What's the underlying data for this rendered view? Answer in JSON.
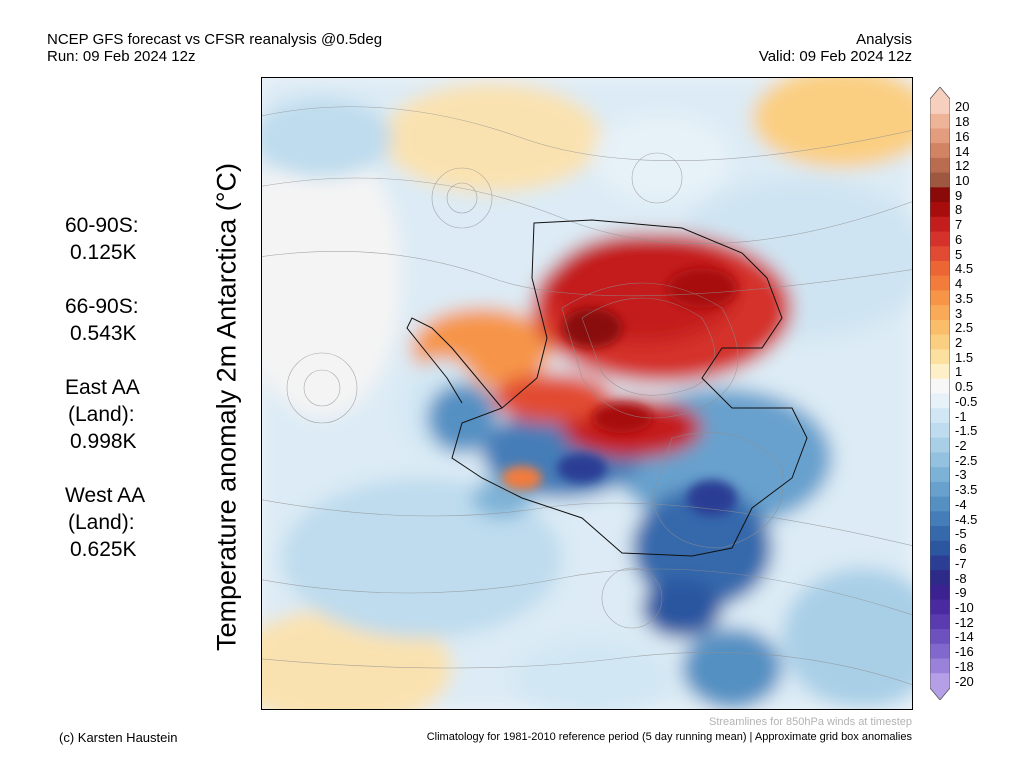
{
  "header": {
    "left_line1": "NCEP GFS forecast vs CFSR reanalysis @0.5deg",
    "left_line2": "Run: 09 Feb 2024 12z",
    "right_line1": "Analysis",
    "right_line2": "Valid: 09 Feb 2024 12z"
  },
  "vertical_title": "Temperature anomaly 2m Antarctica (°C)",
  "stats": [
    {
      "lines": [
        "60-90S:"
      ],
      "value": "0.125K"
    },
    {
      "lines": [
        "66-90S:"
      ],
      "value": "0.543K"
    },
    {
      "lines": [
        "East AA",
        "(Land):"
      ],
      "value": "0.998K"
    },
    {
      "lines": [
        "West AA",
        "(Land):"
      ],
      "value": "0.625K"
    }
  ],
  "colorbar": {
    "labels": [
      "20",
      "18",
      "16",
      "14",
      "12",
      "10",
      "9",
      "8",
      "7",
      "6",
      "5",
      "4.5",
      "4",
      "3.5",
      "3",
      "2.5",
      "2",
      "1.5",
      "1",
      "0.5",
      "-0.5",
      "-1",
      "-1.5",
      "-2",
      "-2.5",
      "-3",
      "-3.5",
      "-4",
      "-4.5",
      "-5",
      "-6",
      "-7",
      "-8",
      "-9",
      "-10",
      "-12",
      "-14",
      "-16",
      "-18",
      "-20"
    ],
    "colors": [
      "#f6cfbf",
      "#eeb498",
      "#e39c7e",
      "#d18363",
      "#b96c4f",
      "#9e5840",
      "#8a0a0a",
      "#a80d0d",
      "#c41d1d",
      "#d4322a",
      "#e24b33",
      "#ec6535",
      "#f27c3c",
      "#f69548",
      "#f8aa58",
      "#fabd6a",
      "#fbcf82",
      "#fbe09f",
      "#fdf0c8",
      "#f7f7f7",
      "#e6f1f8",
      "#d2e7f4",
      "#bedcee",
      "#a9cfe7",
      "#93c1df",
      "#7db2d7",
      "#68a1cd",
      "#5590c3",
      "#447db8",
      "#3669ac",
      "#2c56a0",
      "#2c3e94",
      "#2e2a87",
      "#3c2291",
      "#4a2aa0",
      "#5a3cb0",
      "#6d52bf",
      "#8168cd",
      "#9a82da",
      "#b59fe6"
    ]
  },
  "footer": {
    "credit": "(c) Karsten Haustein",
    "streamlines_note": "Streamlines for 850hPa winds at timestep",
    "climatology_note": "Climatology for 1981-2010 reference period (5 day running mean) | Approximate grid box anomalies"
  }
}
